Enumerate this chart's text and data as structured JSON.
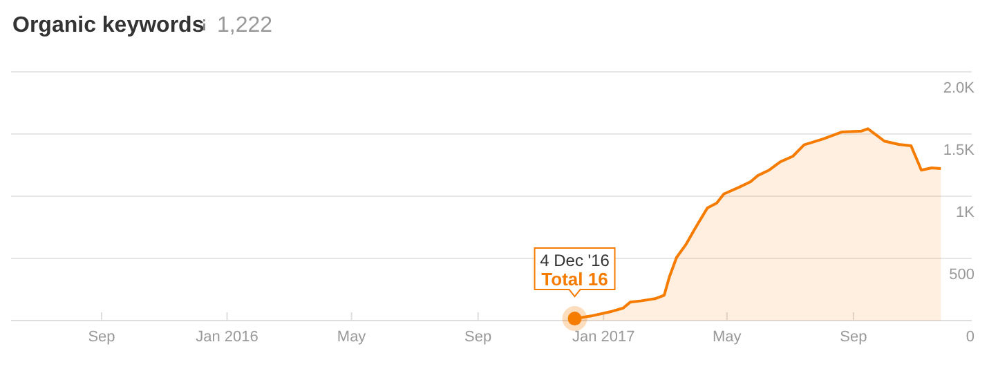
{
  "chart_data": {
    "type": "area",
    "title": "Organic keywords",
    "subtitle": "1,222",
    "x": [
      "2016-12-04",
      "2016-12-20",
      "2017-01-09",
      "2017-01-20",
      "2017-01-27",
      "2017-02-07",
      "2017-02-21",
      "2017-03-01",
      "2017-03-06",
      "2017-03-13",
      "2017-03-22",
      "2017-03-31",
      "2017-04-12",
      "2017-04-21",
      "2017-04-28",
      "2017-05-13",
      "2017-05-24",
      "2017-05-31",
      "2017-06-11",
      "2017-06-22",
      "2017-07-04",
      "2017-07-15",
      "2017-08-03",
      "2017-08-21",
      "2017-09-09",
      "2017-09-15",
      "2017-09-22",
      "2017-10-01",
      "2017-10-15",
      "2017-10-27",
      "2017-11-06",
      "2017-11-16",
      "2017-11-25"
    ],
    "series": [
      {
        "color": "#f57c00",
        "values": [
          16,
          37,
          74,
          100,
          148,
          159,
          178,
          204,
          350,
          507,
          610,
          740,
          906,
          944,
          1018,
          1073,
          1117,
          1166,
          1210,
          1277,
          1321,
          1413,
          1462,
          1517,
          1524,
          1543,
          1499,
          1443,
          1417,
          1406,
          1210,
          1228,
          1222
        ]
      }
    ],
    "xlim": [
      "2015-06-05",
      "2017-12-25"
    ],
    "xticks": [
      {
        "value": "2015-09-01",
        "label": "Sep"
      },
      {
        "value": "2016-01-01",
        "label": "Jan 2016"
      },
      {
        "value": "2016-05-01",
        "label": "May"
      },
      {
        "value": "2016-09-01",
        "label": "Sep"
      },
      {
        "value": "2017-01-01",
        "label": "Jan 2017"
      },
      {
        "value": "2017-05-01",
        "label": "May"
      },
      {
        "value": "2017-09-01",
        "label": "Sep"
      }
    ],
    "ylim": [
      0,
      2000
    ],
    "yticks": [
      0,
      500,
      {
        "value": 1000,
        "label": "1K"
      },
      {
        "value": 1500,
        "label": "1.5K"
      },
      {
        "value": 2000,
        "label": "2.0K"
      }
    ],
    "grid": "y",
    "marker": "none",
    "annotations": [
      {
        "text": "4 Dec '16",
        "x": "2016-12-04",
        "y": 16
      },
      {
        "text": "Total 16",
        "x": "2016-12-04",
        "y": 16
      }
    ]
  }
}
